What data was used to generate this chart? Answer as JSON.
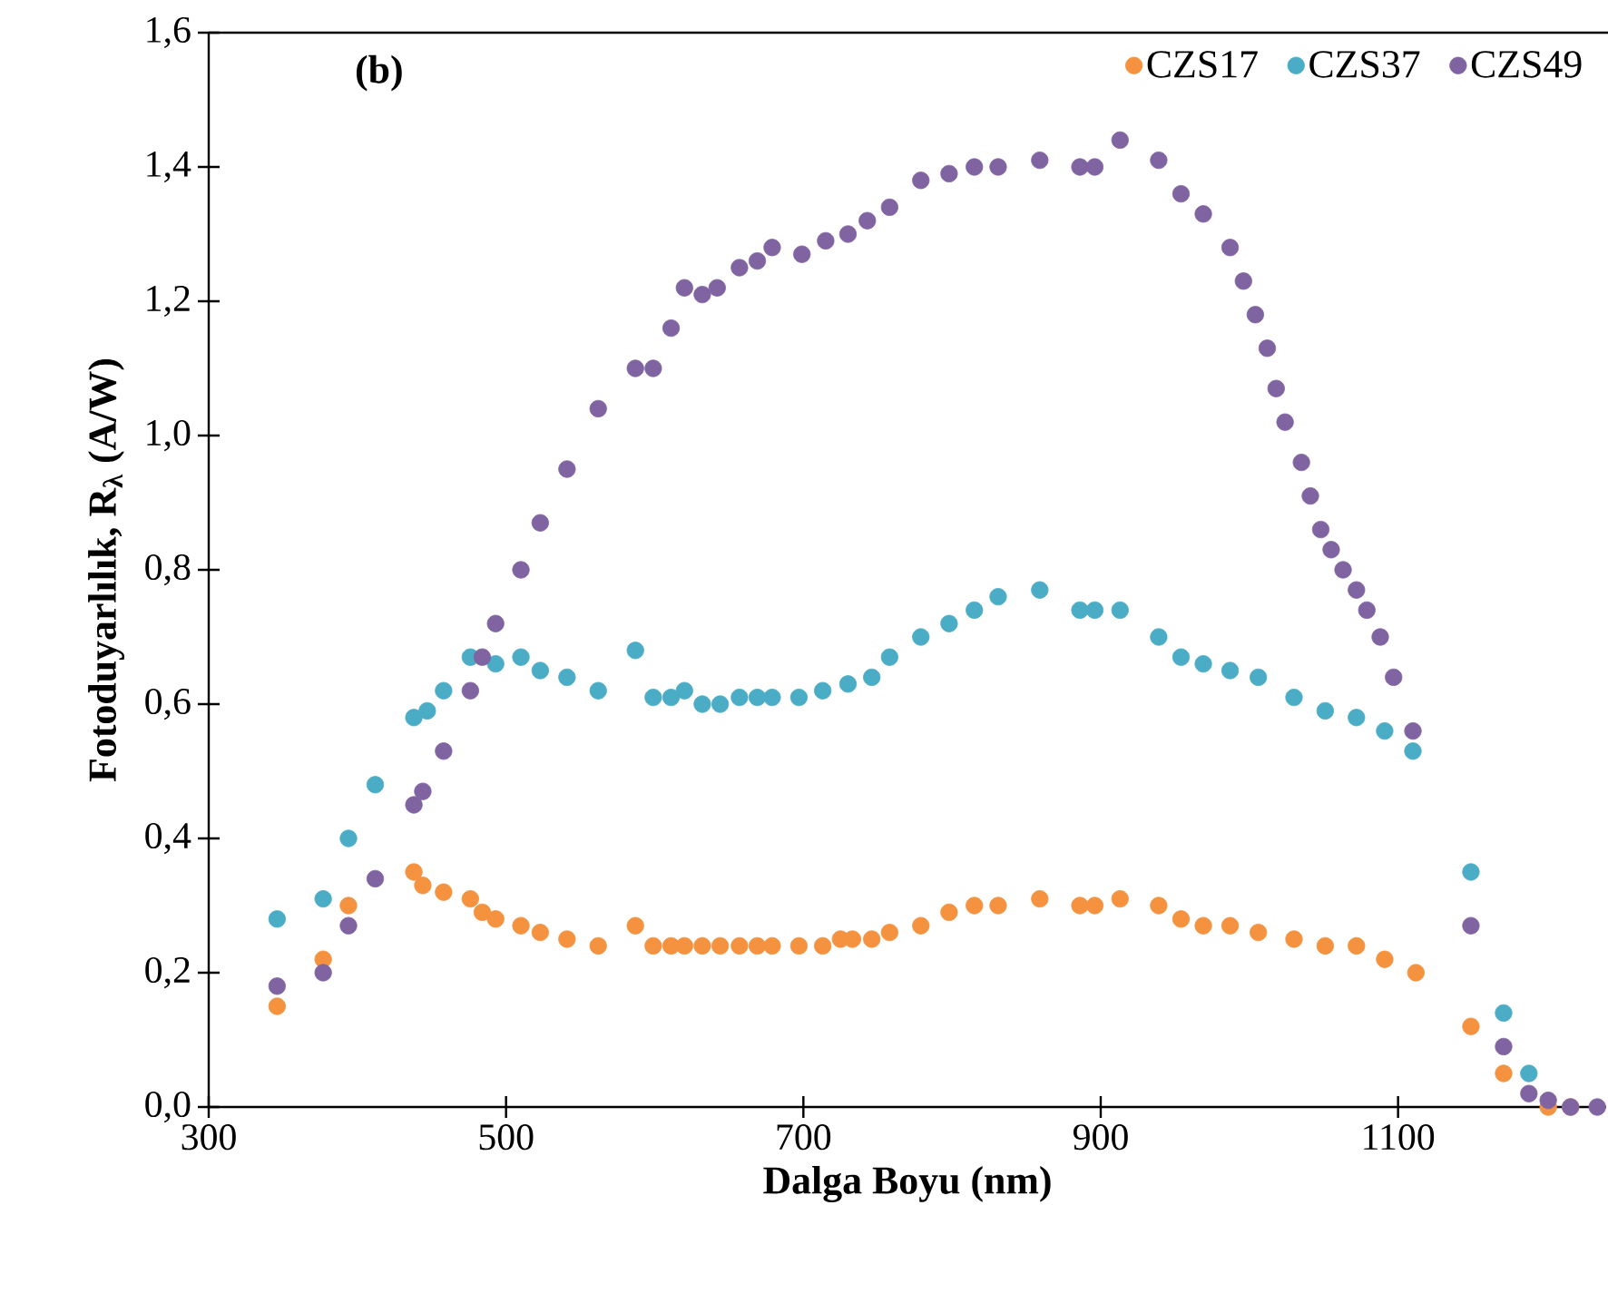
{
  "chart_data": {
    "type": "scatter",
    "xlabel": "Dalga Boyu (nm)",
    "ylabel": "Fotoduyarlılık,  R$_{λ}$ (A/W)",
    "annotations": [
      "(b)"
    ],
    "xlim": [
      300,
      1240
    ],
    "xticks": [
      300,
      500,
      700,
      900,
      1100
    ],
    "ylim": [
      0,
      1.6
    ],
    "yticks": [
      {
        "value": 0,
        "label": "0,0"
      },
      {
        "value": 0.2,
        "label": "0,2"
      },
      {
        "value": 0.4,
        "label": "0,4"
      },
      {
        "value": 0.6,
        "label": "0,6"
      },
      {
        "value": 0.8,
        "label": "0,8"
      },
      {
        "value": 1.0,
        "label": "1,0"
      },
      {
        "value": 1.2,
        "label": "1,2"
      },
      {
        "value": 1.4,
        "label": "1,4"
      },
      {
        "value": 1.6,
        "label": "1,6"
      }
    ],
    "legend": "top right",
    "marker": "circle",
    "series": [
      {
        "name": "CZS17",
        "color": "#f4923f",
        "x": [
          346,
          377,
          394,
          438,
          444,
          458,
          476,
          484,
          493,
          510,
          523,
          541,
          562,
          587,
          599,
          611,
          620,
          632,
          644,
          657,
          669,
          679,
          697,
          713,
          725,
          733,
          746,
          758,
          779,
          798,
          815,
          831,
          859,
          886,
          896,
          913,
          939,
          954,
          969,
          987,
          1006,
          1030,
          1051,
          1072,
          1091,
          1112,
          1149,
          1171,
          1188,
          1201,
          1216
        ],
        "values": [
          0.15,
          0.22,
          0.3,
          0.35,
          0.33,
          0.32,
          0.31,
          0.29,
          0.28,
          0.27,
          0.26,
          0.25,
          0.24,
          0.27,
          0.24,
          0.24,
          0.24,
          0.24,
          0.24,
          0.24,
          0.24,
          0.24,
          0.24,
          0.24,
          0.25,
          0.25,
          0.25,
          0.26,
          0.27,
          0.29,
          0.3,
          0.3,
          0.31,
          0.3,
          0.3,
          0.31,
          0.3,
          0.28,
          0.27,
          0.27,
          0.26,
          0.25,
          0.24,
          0.24,
          0.22,
          0.2,
          0.12,
          0.05,
          null,
          0.0,
          0.0
        ]
      },
      {
        "name": "CZS37",
        "color": "#4bacc6",
        "x": [
          346,
          377,
          394,
          412,
          438,
          447,
          458,
          476,
          486,
          493,
          510,
          523,
          541,
          562,
          587,
          599,
          611,
          620,
          632,
          644,
          657,
          669,
          679,
          697,
          713,
          730,
          746,
          758,
          779,
          798,
          815,
          831,
          859,
          886,
          896,
          913,
          939,
          954,
          969,
          987,
          1006,
          1030,
          1051,
          1072,
          1091,
          1110,
          1149,
          1171,
          1188
        ],
        "values": [
          0.28,
          0.31,
          0.4,
          0.48,
          0.58,
          0.59,
          0.62,
          0.67,
          null,
          0.66,
          0.67,
          0.65,
          0.64,
          0.62,
          0.68,
          0.61,
          0.61,
          0.62,
          0.6,
          0.6,
          0.61,
          0.61,
          0.61,
          0.61,
          0.62,
          0.63,
          0.64,
          0.67,
          0.7,
          0.72,
          0.74,
          0.76,
          0.77,
          0.74,
          0.74,
          0.74,
          0.7,
          0.67,
          0.66,
          0.65,
          0.64,
          0.61,
          0.59,
          0.58,
          0.56,
          0.53,
          0.35,
          0.14,
          0.05
        ]
      },
      {
        "name": "CZS49",
        "color": "#8064a2",
        "x": [
          346,
          377,
          394,
          412,
          438,
          444,
          458,
          476,
          484,
          493,
          510,
          523,
          541,
          562,
          587,
          599,
          611,
          620,
          632,
          642,
          657,
          669,
          679,
          699,
          715,
          730,
          743,
          758,
          779,
          798,
          815,
          831,
          859,
          886,
          896,
          913,
          939,
          954,
          969,
          987,
          996,
          1004,
          1012,
          1018,
          1024,
          1035,
          1041,
          1048,
          1055,
          1063,
          1072,
          1079,
          1088,
          1097,
          1110,
          1149,
          1171,
          1188,
          1201,
          1216,
          1234
        ],
        "values": [
          0.18,
          0.2,
          0.27,
          0.34,
          0.45,
          0.47,
          0.53,
          0.62,
          0.67,
          0.72,
          0.8,
          0.87,
          0.95,
          1.04,
          1.1,
          1.1,
          1.16,
          1.22,
          1.21,
          1.22,
          1.25,
          1.26,
          1.28,
          1.27,
          1.29,
          1.3,
          1.32,
          1.34,
          1.38,
          1.39,
          1.4,
          1.4,
          1.41,
          1.4,
          1.4,
          1.44,
          1.41,
          1.36,
          1.33,
          1.28,
          1.23,
          1.18,
          1.13,
          1.07,
          1.02,
          0.96,
          0.91,
          0.86,
          0.83,
          0.8,
          0.77,
          0.74,
          0.7,
          0.64,
          0.56,
          0.27,
          0.09,
          0.02,
          0.01,
          0.0,
          0.0
        ]
      }
    ]
  }
}
